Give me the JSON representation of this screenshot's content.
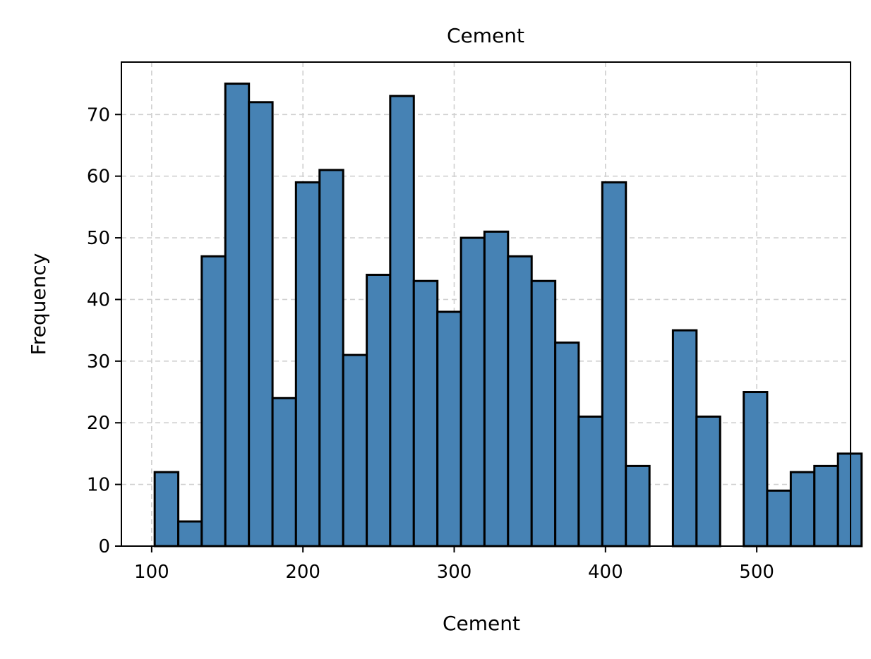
{
  "chart_data": {
    "type": "bar",
    "title": "Cement",
    "xlabel": "Cement",
    "ylabel": "Frequency",
    "xlim": [
      80,
      562
    ],
    "ylim": [
      0,
      78.5
    ],
    "xticks": [
      100,
      200,
      300,
      400,
      500
    ],
    "yticks": [
      0,
      10,
      20,
      30,
      40,
      50,
      60,
      70
    ],
    "grid": true,
    "bar_color": "#4682b4",
    "edge_color": "#000000",
    "bins": [
      {
        "x0": 102.0,
        "x1": 117.6,
        "value": 12
      },
      {
        "x0": 117.6,
        "x1": 133.1,
        "value": 4
      },
      {
        "x0": 133.1,
        "x1": 148.7,
        "value": 47
      },
      {
        "x0": 148.7,
        "x1": 164.3,
        "value": 75
      },
      {
        "x0": 164.3,
        "x1": 179.9,
        "value": 72
      },
      {
        "x0": 179.9,
        "x1": 195.4,
        "value": 24
      },
      {
        "x0": 195.4,
        "x1": 211.0,
        "value": 59
      },
      {
        "x0": 211.0,
        "x1": 226.6,
        "value": 61
      },
      {
        "x0": 226.6,
        "x1": 242.2,
        "value": 31
      },
      {
        "x0": 242.2,
        "x1": 257.7,
        "value": 44
      },
      {
        "x0": 257.7,
        "x1": 273.3,
        "value": 73
      },
      {
        "x0": 273.3,
        "x1": 288.9,
        "value": 43
      },
      {
        "x0": 288.9,
        "x1": 304.5,
        "value": 38
      },
      {
        "x0": 304.5,
        "x1": 320.0,
        "value": 50
      },
      {
        "x0": 320.0,
        "x1": 335.6,
        "value": 51
      },
      {
        "x0": 335.6,
        "x1": 351.2,
        "value": 47
      },
      {
        "x0": 351.2,
        "x1": 366.8,
        "value": 43
      },
      {
        "x0": 366.8,
        "x1": 382.3,
        "value": 33
      },
      {
        "x0": 382.3,
        "x1": 397.9,
        "value": 21
      },
      {
        "x0": 397.9,
        "x1": 413.5,
        "value": 59
      },
      {
        "x0": 413.5,
        "x1": 429.1,
        "value": 13
      },
      {
        "x0": 429.1,
        "x1": 444.6,
        "value": 0
      },
      {
        "x0": 444.6,
        "x1": 460.2,
        "value": 35
      },
      {
        "x0": 460.2,
        "x1": 475.8,
        "value": 21
      },
      {
        "x0": 475.8,
        "x1": 491.4,
        "value": 0
      },
      {
        "x0": 491.4,
        "x1": 506.9,
        "value": 25
      },
      {
        "x0": 506.9,
        "x1": 522.5,
        "value": 9
      },
      {
        "x0": 522.5,
        "x1": 538.1,
        "value": 12
      },
      {
        "x0": 538.1,
        "x1": 553.7,
        "value": 13
      },
      {
        "x0": 553.7,
        "x1": 569.3,
        "value": 15
      }
    ]
  }
}
